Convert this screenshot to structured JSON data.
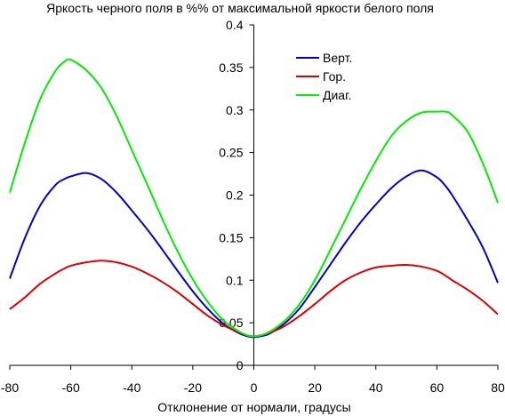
{
  "chart_data": {
    "type": "line",
    "title": "Яркость черного поля в %% от максимальной яркости белого поля",
    "xlabel": "Отклонение от нормали, градусы",
    "ylabel": "",
    "xlim": [
      -80,
      80
    ],
    "ylim": [
      0,
      0.4
    ],
    "x_ticks": [
      -80,
      -60,
      -40,
      -20,
      0,
      20,
      40,
      60,
      80
    ],
    "y_ticks": [
      0,
      0.05,
      0.1,
      0.15,
      0.2,
      0.25,
      0.3,
      0.35,
      0.4
    ],
    "x_tick_labels": [
      "-80",
      "-60",
      "-40",
      "-20",
      "0",
      "20",
      "40",
      "60",
      "80"
    ],
    "y_tick_labels": [
      "0",
      "0.05",
      "0.1",
      "0.15",
      "0.2",
      "0.25",
      "0.3",
      "0.35",
      "0.4"
    ],
    "grid": false,
    "legend_position": "top-right",
    "x": [
      -80,
      -75,
      -70,
      -65,
      -62,
      -60,
      -55,
      -50,
      -45,
      -40,
      -35,
      -30,
      -25,
      -20,
      -15,
      -10,
      -5,
      -2,
      0,
      2,
      5,
      10,
      15,
      20,
      25,
      30,
      35,
      40,
      45,
      50,
      55,
      60,
      63,
      65,
      70,
      75,
      80
    ],
    "series": [
      {
        "name": "Верт.",
        "color": "#0000cc",
        "values": [
          0.102,
          0.15,
          0.188,
          0.212,
          0.219,
          0.222,
          0.226,
          0.219,
          0.203,
          0.182,
          0.16,
          0.136,
          0.111,
          0.087,
          0.066,
          0.049,
          0.038,
          0.034,
          0.033,
          0.034,
          0.037,
          0.049,
          0.067,
          0.092,
          0.118,
          0.144,
          0.168,
          0.189,
          0.208,
          0.222,
          0.229,
          0.221,
          0.21,
          0.2,
          0.171,
          0.139,
          0.097
        ]
      },
      {
        "name": "Гор.",
        "color": "#dd0000",
        "values": [
          0.066,
          0.08,
          0.096,
          0.108,
          0.114,
          0.117,
          0.121,
          0.123,
          0.121,
          0.116,
          0.108,
          0.098,
          0.086,
          0.072,
          0.058,
          0.047,
          0.039,
          0.035,
          0.034,
          0.035,
          0.038,
          0.046,
          0.058,
          0.072,
          0.087,
          0.1,
          0.109,
          0.115,
          0.117,
          0.118,
          0.116,
          0.111,
          0.105,
          0.1,
          0.089,
          0.076,
          0.06
        ]
      },
      {
        "name": "Диаг.",
        "color": "#00ee00",
        "values": [
          0.203,
          0.262,
          0.313,
          0.346,
          0.357,
          0.359,
          0.347,
          0.326,
          0.293,
          0.253,
          0.213,
          0.172,
          0.134,
          0.101,
          0.074,
          0.053,
          0.04,
          0.035,
          0.034,
          0.035,
          0.039,
          0.052,
          0.072,
          0.1,
          0.135,
          0.171,
          0.207,
          0.24,
          0.269,
          0.287,
          0.297,
          0.298,
          0.298,
          0.294,
          0.275,
          0.238,
          0.191
        ]
      }
    ]
  }
}
